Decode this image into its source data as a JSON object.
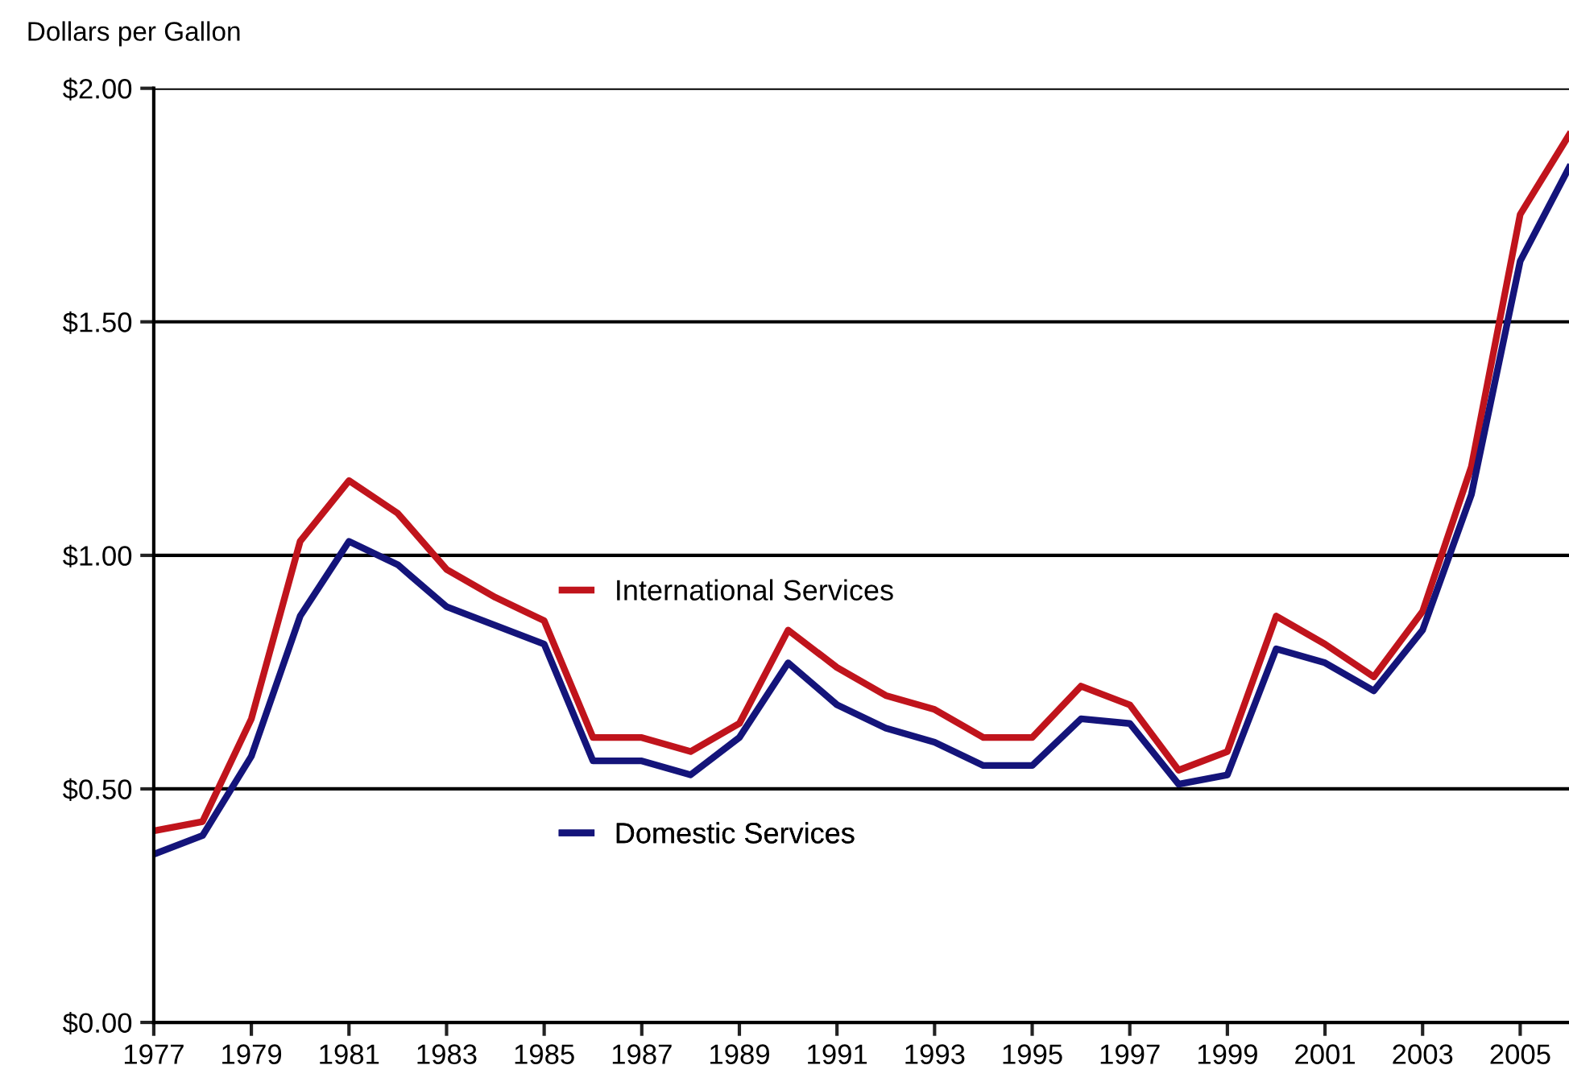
{
  "chart_data": {
    "type": "line",
    "ylabel": "Dollars per Gallon",
    "x": [
      1977,
      1978,
      1979,
      1980,
      1981,
      1982,
      1983,
      1984,
      1985,
      1986,
      1987,
      1988,
      1989,
      1990,
      1991,
      1992,
      1993,
      1994,
      1995,
      1996,
      1997,
      1998,
      1999,
      2000,
      2001,
      2002,
      2003,
      2004,
      2005,
      2006
    ],
    "series": [
      {
        "name": "International Services",
        "color": "#c0141c",
        "values": [
          0.41,
          0.43,
          0.65,
          1.03,
          1.16,
          1.09,
          0.97,
          0.91,
          0.86,
          0.61,
          0.61,
          0.58,
          0.64,
          0.84,
          0.76,
          0.7,
          0.67,
          0.61,
          0.61,
          0.72,
          0.68,
          0.54,
          0.58,
          0.87,
          0.81,
          0.74,
          0.88,
          1.19,
          1.73,
          1.9
        ]
      },
      {
        "name": "Domestic Services",
        "color": "#14147a",
        "values": [
          0.36,
          0.4,
          0.57,
          0.87,
          1.03,
          0.98,
          0.89,
          0.85,
          0.81,
          0.56,
          0.56,
          0.53,
          0.61,
          0.77,
          0.68,
          0.63,
          0.6,
          0.55,
          0.55,
          0.65,
          0.64,
          0.51,
          0.53,
          0.8,
          0.77,
          0.71,
          0.84,
          1.13,
          1.63,
          1.83
        ]
      }
    ],
    "xlim": [
      1977,
      2006
    ],
    "xticks": [
      1977,
      1979,
      1981,
      1983,
      1985,
      1987,
      1989,
      1991,
      1993,
      1995,
      1997,
      1999,
      2001,
      2003,
      2005
    ],
    "ylim": [
      0,
      2
    ],
    "yticks": [
      {
        "value": 0,
        "label": "$0.00"
      },
      {
        "value": 0.5,
        "label": "$0.50"
      },
      {
        "value": 1,
        "label": "$1.00"
      },
      {
        "value": 1.5,
        "label": "$1.50"
      },
      {
        "value": 2,
        "label": "$2.00"
      }
    ],
    "grid": "y",
    "legend": "center",
    "marker": "none",
    "line_style": "solid"
  }
}
